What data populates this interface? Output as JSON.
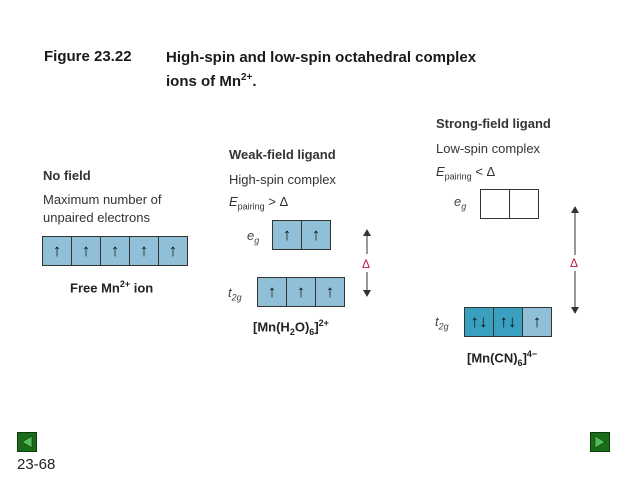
{
  "figure": {
    "number": "Figure 23.22",
    "title_line1": "High-spin and low-spin octahedral complex",
    "title_line2_pre": "ions of Mn",
    "title_line2_sup": "2+",
    "title_line2_post": "."
  },
  "no_field": {
    "heading": "No field",
    "desc_line1": "Maximum number of",
    "desc_line2": "unpaired electrons",
    "cells": [
      "↑",
      "↑",
      "↑",
      "↑",
      "↑"
    ],
    "label_pre": "Free Mn",
    "label_sup": "2+",
    "label_post": " ion"
  },
  "weak": {
    "heading": "Weak-field ligand",
    "subheading": "High-spin complex",
    "energy_E": "E",
    "energy_sub": "pairing",
    "energy_rel": " > Δ",
    "eg_e": "e",
    "eg_sub": "g",
    "eg_cells": [
      "↑",
      "↑"
    ],
    "t2g_t": "t",
    "t2g_sub": "2g",
    "t2g_cells": [
      "↑",
      "↑",
      "↑"
    ],
    "delta": "Δ",
    "formula_a": "[Mn(H",
    "formula_b": "2",
    "formula_c": "O)",
    "formula_d": "6",
    "formula_e": "]",
    "formula_f": "2+"
  },
  "strong": {
    "heading": "Strong-field ligand",
    "subheading": "Low-spin complex",
    "energy_E": "E",
    "energy_sub": "pairing",
    "energy_rel": " < Δ",
    "eg_e": "e",
    "eg_sub": "g",
    "eg_cells": [
      "",
      ""
    ],
    "t2g_t": "t",
    "t2g_sub": "2g",
    "t2g_cells": [
      "↑↓",
      "↑↓",
      "↑"
    ],
    "delta": "Δ",
    "formula_a": "[Mn(CN)",
    "formula_b": "6",
    "formula_c": "]",
    "formula_d": "4−"
  },
  "footer": {
    "page": "23-68"
  },
  "colors": {
    "orbital_light": "#8fc0d8",
    "orbital_dark": "#3aa0bf",
    "delta": "#c0213f",
    "nav": "#1a6b1a"
  },
  "icons": {
    "prev": "triangle-left-icon",
    "next": "triangle-right-icon"
  }
}
